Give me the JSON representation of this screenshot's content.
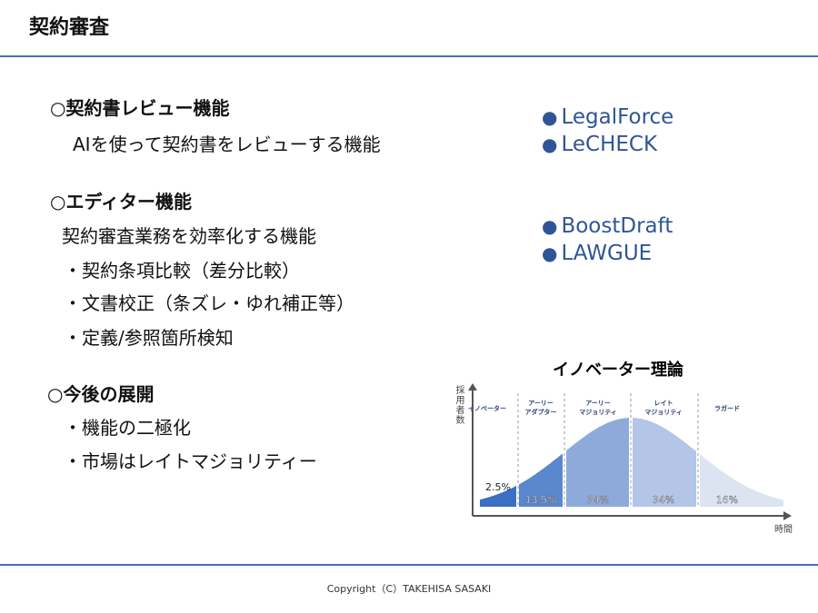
{
  "header": {
    "title": "契約審査"
  },
  "sections": [
    {
      "heading": "○契約書レビュー機能",
      "lines": [
        "AIを使って契約書をレビューする機能"
      ]
    },
    {
      "heading": "○エディター機能",
      "lines": [
        "契約審査業務を効率化する機能",
        "・契約条項比較（差分比較）",
        "・文書校正（条ズレ・ゆれ補正等）",
        "・定義/参照箇所検知"
      ]
    },
    {
      "heading": "○今後の展開",
      "lines": [
        "・機能の二極化",
        "・市場はレイトマジョリティー"
      ]
    }
  ],
  "products": {
    "review": [
      "LegalForce",
      "LeCHECK"
    ],
    "editor": [
      "BoostDraft",
      "LAWGUE"
    ],
    "bullet": "●",
    "color": "#2f5597"
  },
  "diagram": {
    "title": "イノベーター理論",
    "y_label": "採用者数",
    "x_label": "時間",
    "segments": [
      {
        "label": "イノベーター",
        "percent": "2.5%",
        "color": "#3a6fc4"
      },
      {
        "label": "アーリー\nアダプター",
        "percent": "13.5%",
        "color": "#5b87cf"
      },
      {
        "label": "アーリー\nマジョリティ",
        "percent": "34%",
        "color": "#8eaadb"
      },
      {
        "label": "レイト\nマジョリティ",
        "percent": "34%",
        "color": "#b4c6e7"
      },
      {
        "label": "ラガード",
        "percent": "16%",
        "color": "#dce4f2"
      }
    ]
  },
  "footer": {
    "copyright": "Copyright（C）TAKEHISA SASAKI"
  },
  "accent": "#4a6fb0"
}
